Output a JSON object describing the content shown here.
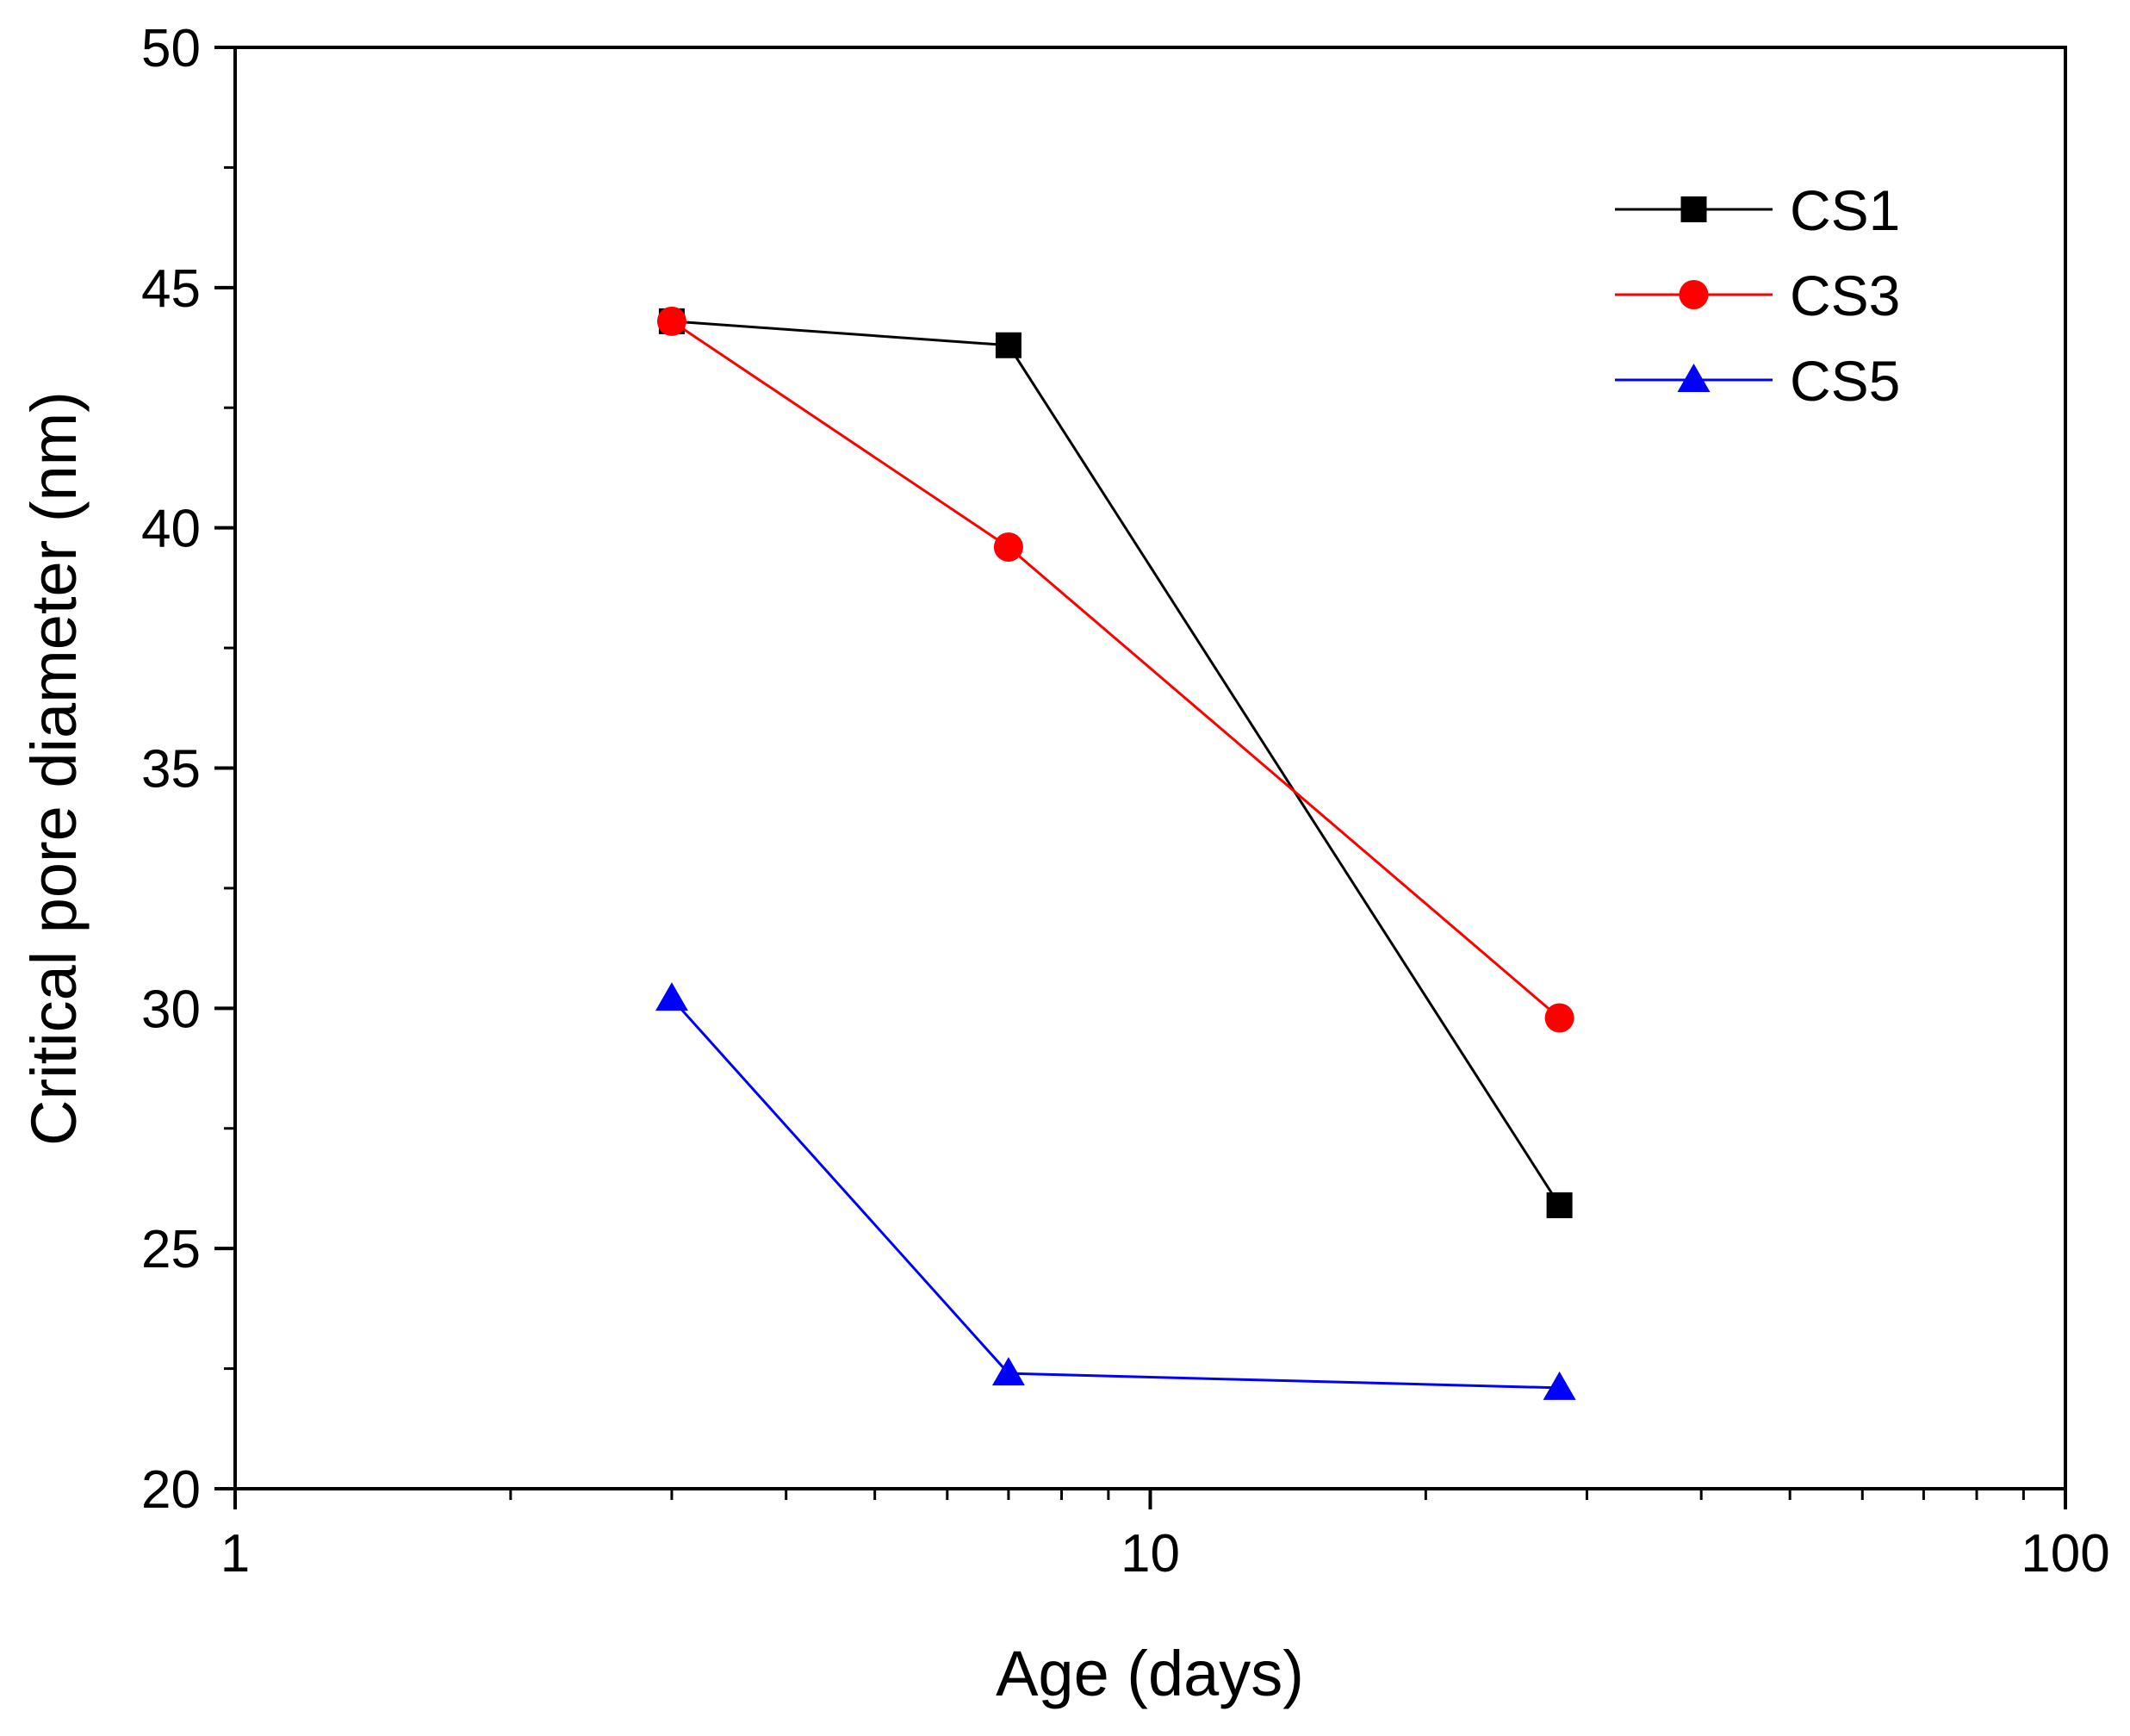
{
  "chart_data": {
    "type": "line",
    "xscale": "log",
    "xlabel": "Age (days)",
    "ylabel": "Critical pore diameter (nm)",
    "xlim": [
      1,
      100
    ],
    "ylim": [
      20,
      50
    ],
    "x_ticks": [
      "1",
      "10",
      "100"
    ],
    "y_ticks": [
      "20",
      "25",
      "30",
      "35",
      "40",
      "45",
      "50"
    ],
    "grid": false,
    "legend_position": "top-right",
    "series": [
      {
        "name": "CS1",
        "color": "#000000",
        "marker": "square",
        "x": [
          3,
          7,
          28
        ],
        "values": [
          44.3,
          43.8,
          25.9
        ]
      },
      {
        "name": "CS3",
        "color": "#ff0000",
        "marker": "circle",
        "x": [
          3,
          7,
          28
        ],
        "values": [
          44.3,
          39.6,
          29.8
        ]
      },
      {
        "name": "CS5",
        "color": "#0000ff",
        "marker": "triangle",
        "x": [
          3,
          7,
          28
        ],
        "values": [
          30.2,
          22.4,
          22.1
        ]
      }
    ]
  }
}
